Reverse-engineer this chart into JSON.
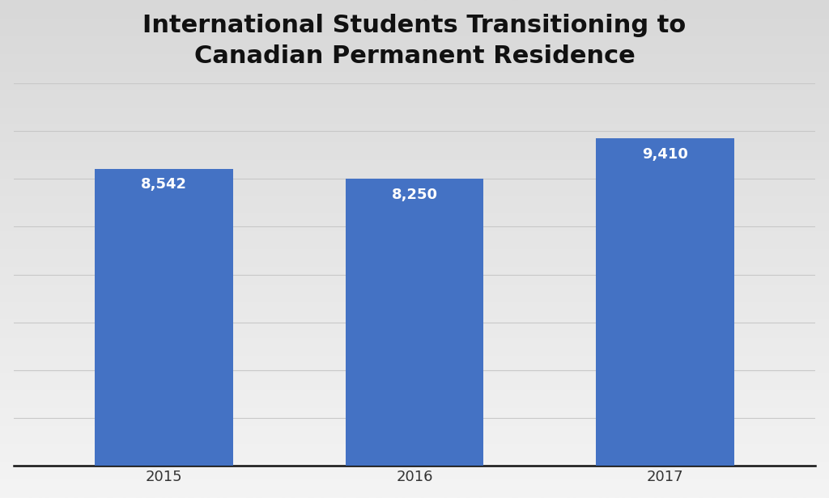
{
  "title": "International Students Transitioning to\nCanadian Permanent Residence",
  "categories": [
    "2015",
    "2016",
    "2017"
  ],
  "values": [
    8542,
    8250,
    9410
  ],
  "labels": [
    "8,542",
    "8,250",
    "9,410"
  ],
  "bar_color": "#4472C4",
  "label_color": "#FFFFFF",
  "title_fontsize": 22,
  "label_fontsize": 13,
  "tick_fontsize": 13,
  "bg_color_top": "#d8d8d8",
  "bg_color_bottom": "#f4f4f4",
  "grid_color": "#c8c8c8",
  "bottom_line_color": "#111111",
  "ylim": [
    0,
    11000
  ],
  "bar_width": 0.55,
  "n_gridlines": 8
}
